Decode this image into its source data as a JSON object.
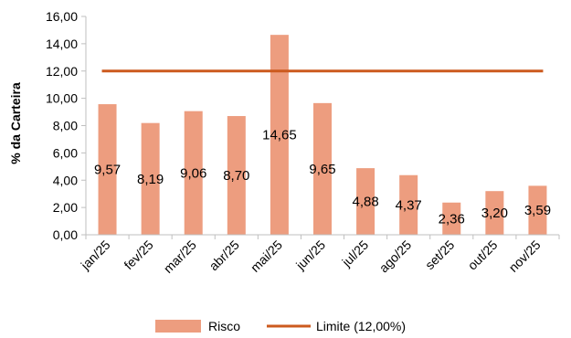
{
  "chart_data": {
    "type": "bar",
    "categories": [
      "jan/25",
      "fev/25",
      "mar/25",
      "abr/25",
      "mai/25",
      "jun/25",
      "jul/25",
      "ago/25",
      "set/25",
      "out/25",
      "nov/25"
    ],
    "series": [
      {
        "name": "Risco",
        "values": [
          9.57,
          8.19,
          9.06,
          8.7,
          14.65,
          9.65,
          4.88,
          4.37,
          2.36,
          3.2,
          3.59
        ]
      }
    ],
    "data_labels": [
      "9,57",
      "8,19",
      "9,06",
      "8,70",
      "14,65",
      "9,65",
      "4,88",
      "4,37",
      "2,36",
      "3,20",
      "3,59"
    ],
    "limit": {
      "name": "Limite (12,00%)",
      "value": 12.0
    },
    "ylabel": "% da Carteira",
    "xlabel": "",
    "ylim": [
      0,
      16
    ],
    "y_ticks": [
      0,
      2,
      4,
      6,
      8,
      10,
      12,
      14,
      16
    ],
    "y_tick_labels": [
      "0,00",
      "2,00",
      "4,00",
      "6,00",
      "8,00",
      "10,00",
      "12,00",
      "14,00",
      "16,00"
    ],
    "legend_position": "bottom",
    "grid": false,
    "colors": {
      "bar": "#ED9D7F",
      "limit_line": "#CC5A1E",
      "axis": "#BFBFBF"
    }
  }
}
